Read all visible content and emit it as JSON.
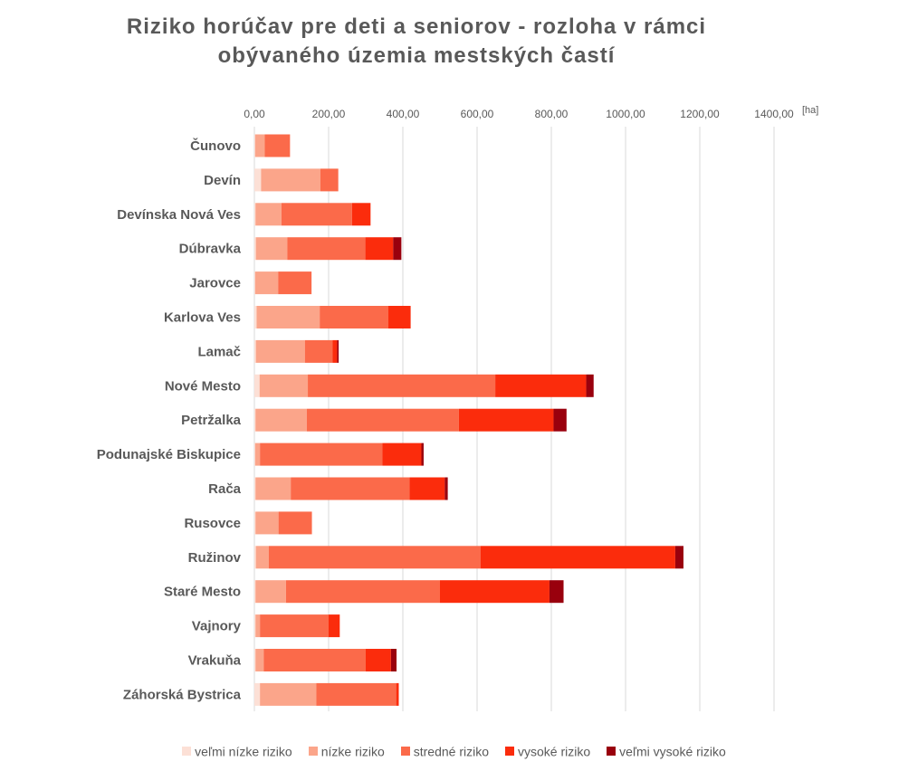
{
  "title_lines": [
    "Riziko horúčav pre deti a seniorov - rozloha v rámci",
    "obývaného územia mestských častí"
  ],
  "unit_label": "[ha]",
  "colors": [
    "#fce0d6",
    "#fba58a",
    "#fb6a4a",
    "#fb2c0c",
    "#99000d"
  ],
  "chart_data": {
    "type": "bar",
    "orientation": "horizontal",
    "stacked": true,
    "title": "Riziko horúčav pre deti a seniorov - rozloha v rámci obývaného územia mestských častí",
    "xlim": [
      0,
      1400
    ],
    "xticks": [
      0,
      200,
      400,
      600,
      800,
      1000,
      1200,
      1400
    ],
    "xtick_labels": [
      "0,00",
      "200,00",
      "400,00",
      "600,00",
      "800,00",
      "1000,00",
      "1200,00",
      "1400,00"
    ],
    "xlabel": "[ha]",
    "ylabel": "",
    "grid": "vertical",
    "legend_position": "bottom",
    "categories": [
      "Čunovo",
      "Devín",
      "Devínska Nová Ves",
      "Dúbravka",
      "Jarovce",
      "Karlova Ves",
      "Lamač",
      "Nové Mesto",
      "Petržalka",
      "Podunajské Biskupice",
      "Rača",
      "Rusovce",
      "Ružinov",
      "Staré Mesto",
      "Vajnory",
      "Vrakuňa",
      "Záhorská Bystrica"
    ],
    "series": [
      {
        "name": "veľmi nízke riziko",
        "values": [
          2,
          18,
          3,
          4,
          2,
          6,
          4,
          14,
          3,
          2,
          3,
          3,
          4,
          3,
          3,
          3,
          15
        ]
      },
      {
        "name": "nízke riziko",
        "values": [
          26,
          160,
          70,
          85,
          62,
          170,
          132,
          130,
          138,
          13,
          95,
          62,
          35,
          82,
          12,
          22,
          152
        ]
      },
      {
        "name": "stredné riziko",
        "values": [
          68,
          48,
          190,
          210,
          90,
          185,
          75,
          505,
          410,
          330,
          320,
          90,
          570,
          415,
          185,
          275,
          215
        ]
      },
      {
        "name": "vysoké riziko",
        "values": [
          0,
          0,
          50,
          75,
          0,
          60,
          12,
          245,
          255,
          105,
          95,
          0,
          525,
          295,
          30,
          68,
          7
        ]
      },
      {
        "name": "veľmi vysoké riziko",
        "values": [
          0,
          0,
          0,
          22,
          0,
          0,
          4,
          20,
          35,
          6,
          8,
          0,
          22,
          38,
          0,
          15,
          0
        ]
      }
    ]
  }
}
